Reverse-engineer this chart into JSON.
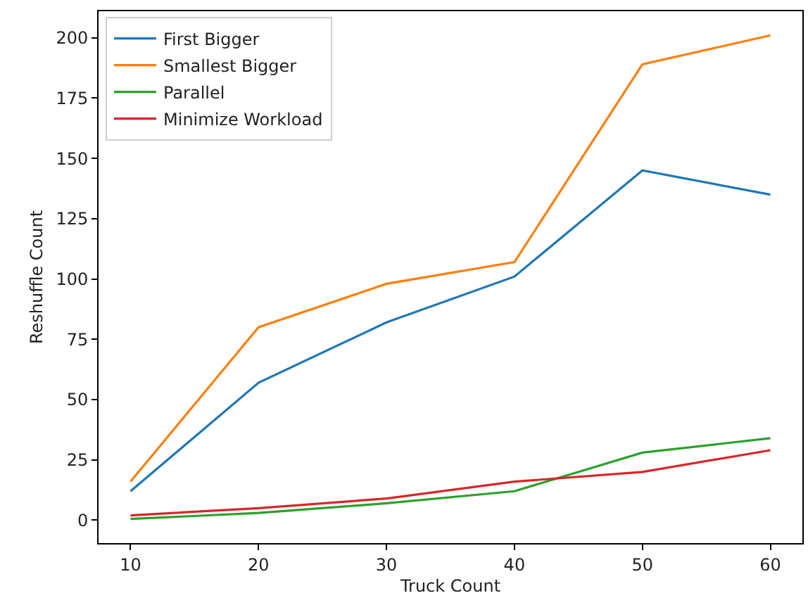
{
  "chart_data": {
    "type": "line",
    "xlabel": "Truck Count",
    "ylabel": "Reshuffle Count",
    "x": [
      10,
      20,
      30,
      40,
      50,
      60
    ],
    "series": [
      {
        "name": "First Bigger",
        "color": "#1f77b4",
        "values": [
          12,
          57,
          82,
          101,
          145,
          135
        ]
      },
      {
        "name": "Smallest Bigger",
        "color": "#ff7f0e",
        "values": [
          16,
          80,
          98,
          107,
          189,
          201
        ]
      },
      {
        "name": "Parallel",
        "color": "#2ca02c",
        "values": [
          0.5,
          3,
          7,
          12,
          28,
          34
        ]
      },
      {
        "name": "Minimize Workload",
        "color": "#d62728",
        "values": [
          2,
          5,
          9,
          16,
          20,
          29
        ]
      }
    ],
    "xlim": [
      7.5,
      62.5
    ],
    "ylim": [
      -9.5,
      211
    ],
    "xticks": [
      10,
      20,
      30,
      40,
      50,
      60
    ],
    "yticks": [
      0,
      25,
      50,
      75,
      100,
      125,
      150,
      175,
      200
    ],
    "grid": false,
    "legend": "top left",
    "marker": "none",
    "line_style": "solid"
  }
}
